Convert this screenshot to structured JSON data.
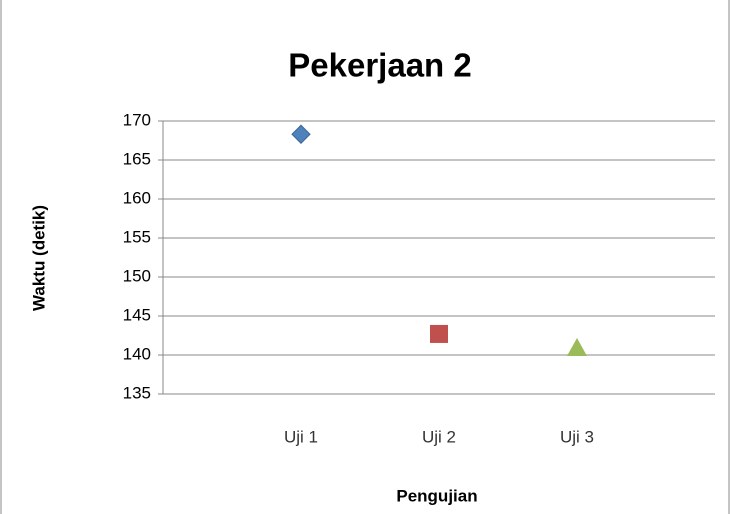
{
  "chart_data": {
    "type": "scatter",
    "title": "Pekerjaan 2",
    "x_label": "Pengujian",
    "y_label": "Waktu (detik)",
    "categories": [
      "Uji 1",
      "Uji 2",
      "Uji 3"
    ],
    "values": [
      168.3,
      142.7,
      140.9
    ],
    "colors": [
      "#4f81bd",
      "#c0504d",
      "#9bbb59"
    ],
    "markers": [
      "diamond",
      "square",
      "triangle"
    ],
    "ylim": [
      135,
      170
    ],
    "yticks": [
      135,
      140,
      145,
      150,
      155,
      160,
      165,
      170
    ],
    "grid": true
  }
}
